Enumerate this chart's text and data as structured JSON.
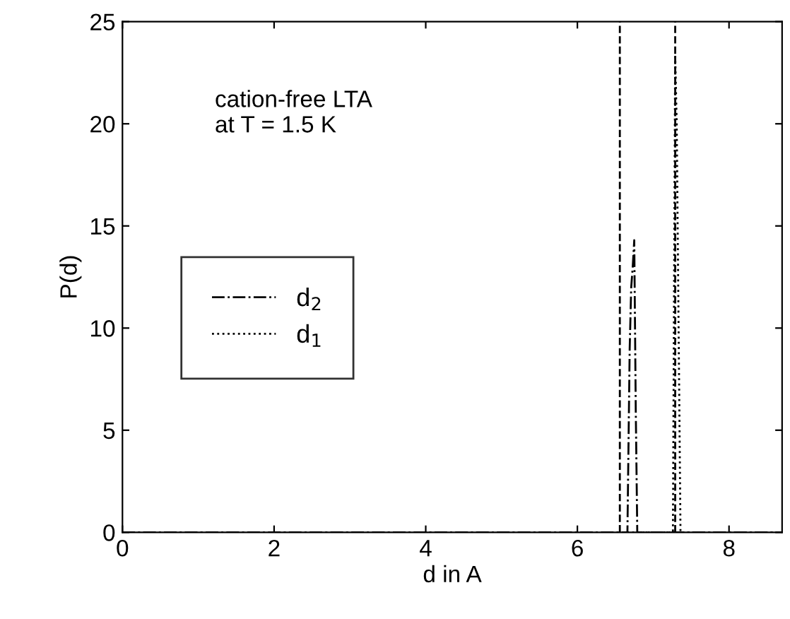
{
  "chart_data": {
    "type": "line",
    "xlabel": "d in A",
    "ylabel": "P(d)",
    "annotations": [
      "cation-free LTA\nat T = 1.5 K"
    ],
    "series": [
      {
        "name": "d$_{2}$",
        "color": "#000000",
        "line_style": "dashdot",
        "x": [
          0,
          6.66,
          6.69,
          6.71,
          6.73,
          6.75,
          6.77,
          6.79,
          8.7
        ],
        "values": [
          0,
          0,
          9,
          12,
          13,
          14.3,
          6,
          0,
          0
        ]
      },
      {
        "name": "d$_{1}$",
        "color": "#000000",
        "line_style": "dotted",
        "x": [
          0,
          7.26,
          7.29,
          7.31,
          7.33,
          7.36,
          8.7
        ],
        "values": [
          0,
          0,
          23.4,
          20,
          12,
          0,
          0
        ]
      }
    ],
    "ref_lines": [
      {
        "axis": "x",
        "value": 6.56,
        "label": null,
        "color": "#000000",
        "line_style": "dashed"
      },
      {
        "axis": "x",
        "value": 7.29,
        "label": null,
        "color": "#000000",
        "line_style": "dashed"
      }
    ],
    "xlim": [
      0,
      8.7
    ],
    "ylim": [
      0,
      25
    ],
    "xticks": [
      0,
      2,
      4,
      6,
      8
    ],
    "yticks": [
      0,
      5,
      10,
      15,
      20,
      25
    ],
    "grid": false,
    "legend": "center left",
    "marker": "none"
  }
}
